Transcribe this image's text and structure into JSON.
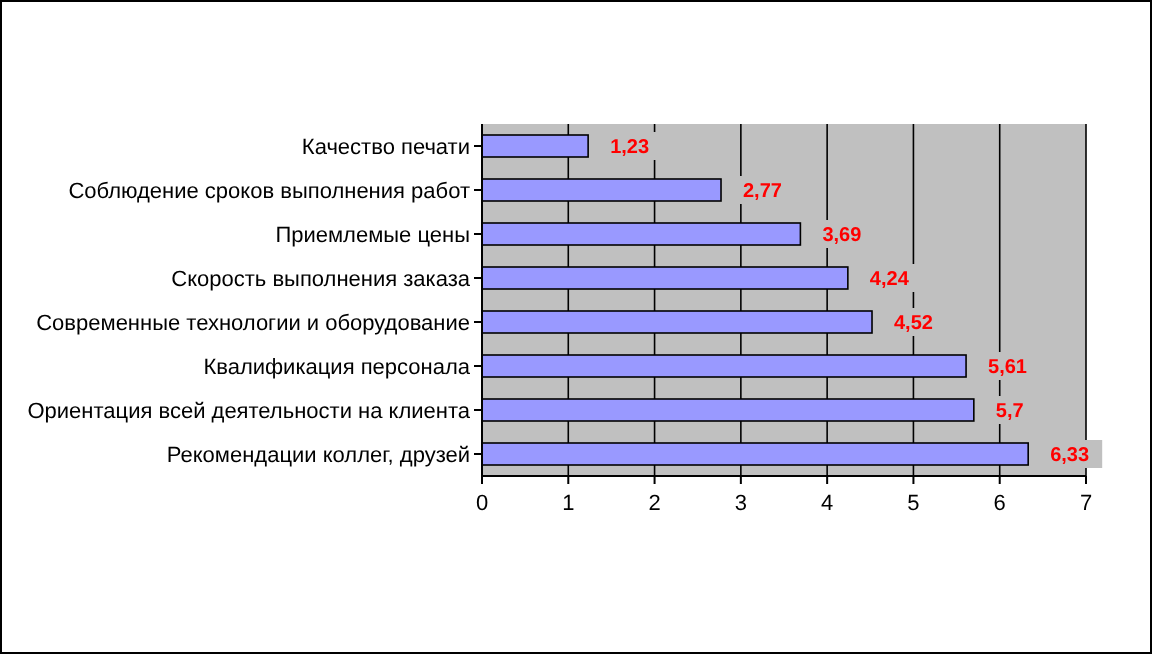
{
  "chart_data": {
    "type": "bar",
    "orientation": "horizontal",
    "categories": [
      "Качество печати",
      "Соблюдение сроков выполнения работ",
      "Приемлемые цены",
      "Скорость выполнения заказа",
      "Современные технологии и оборудование",
      "Квалификация персонала",
      "Ориентация всей деятельности на клиента",
      "Рекомендации коллег, друзей"
    ],
    "values": [
      1.23,
      2.77,
      3.69,
      4.24,
      4.52,
      5.61,
      5.7,
      6.33
    ],
    "value_labels": [
      "1,23",
      "2,77",
      "3,69",
      "4,24",
      "4,52",
      "5,61",
      "5,7",
      "6,33"
    ],
    "color": "#9999ff",
    "xlim": [
      0,
      7
    ],
    "xticks": [
      0,
      1,
      2,
      3,
      4,
      5,
      6,
      7
    ],
    "grid": "x"
  }
}
